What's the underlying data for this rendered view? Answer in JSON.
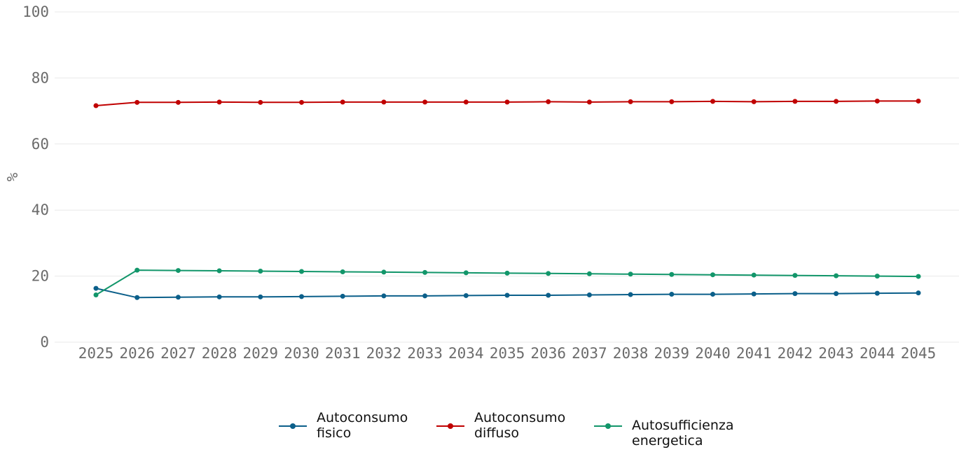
{
  "chart_data": {
    "type": "line",
    "title": "",
    "xlabel": "",
    "ylabel": "%",
    "ylim": [
      0,
      100
    ],
    "yticks": [
      "0",
      "20",
      "40",
      "60",
      "80",
      "100"
    ],
    "x": [
      "2025",
      "2026",
      "2027",
      "2028",
      "2029",
      "2030",
      "2031",
      "2032",
      "2033",
      "2034",
      "2035",
      "2036",
      "2037",
      "2038",
      "2039",
      "2040",
      "2041",
      "2042",
      "2043",
      "2044",
      "2045"
    ],
    "grid": "horizontal",
    "legend_position": "bottom",
    "series": [
      {
        "name": "Autoconsumo fisico",
        "legend_lines": [
          "Autoconsumo",
          "fisico"
        ],
        "color": "#0b5f8a",
        "values": [
          16.3,
          13.5,
          13.6,
          13.7,
          13.7,
          13.8,
          13.9,
          14.0,
          14.0,
          14.1,
          14.2,
          14.2,
          14.3,
          14.4,
          14.5,
          14.5,
          14.6,
          14.7,
          14.7,
          14.8,
          14.9
        ]
      },
      {
        "name": "Autoconsumo diffuso",
        "legend_lines": [
          "Autoconsumo",
          "diffuso"
        ],
        "color": "#c00000",
        "values": [
          71.6,
          72.6,
          72.6,
          72.7,
          72.6,
          72.6,
          72.7,
          72.7,
          72.7,
          72.7,
          72.7,
          72.8,
          72.7,
          72.8,
          72.8,
          72.9,
          72.8,
          72.9,
          72.9,
          73.0,
          73.0
        ]
      },
      {
        "name": "Autosufficienza energetica",
        "legend_lines": [
          "Autosufficienza",
          "energetica"
        ],
        "color": "#12966a",
        "values": [
          14.3,
          21.8,
          21.7,
          21.6,
          21.5,
          21.4,
          21.3,
          21.2,
          21.1,
          21.0,
          20.9,
          20.8,
          20.7,
          20.6,
          20.5,
          20.4,
          20.3,
          20.2,
          20.1,
          20.0,
          19.9
        ]
      }
    ]
  }
}
